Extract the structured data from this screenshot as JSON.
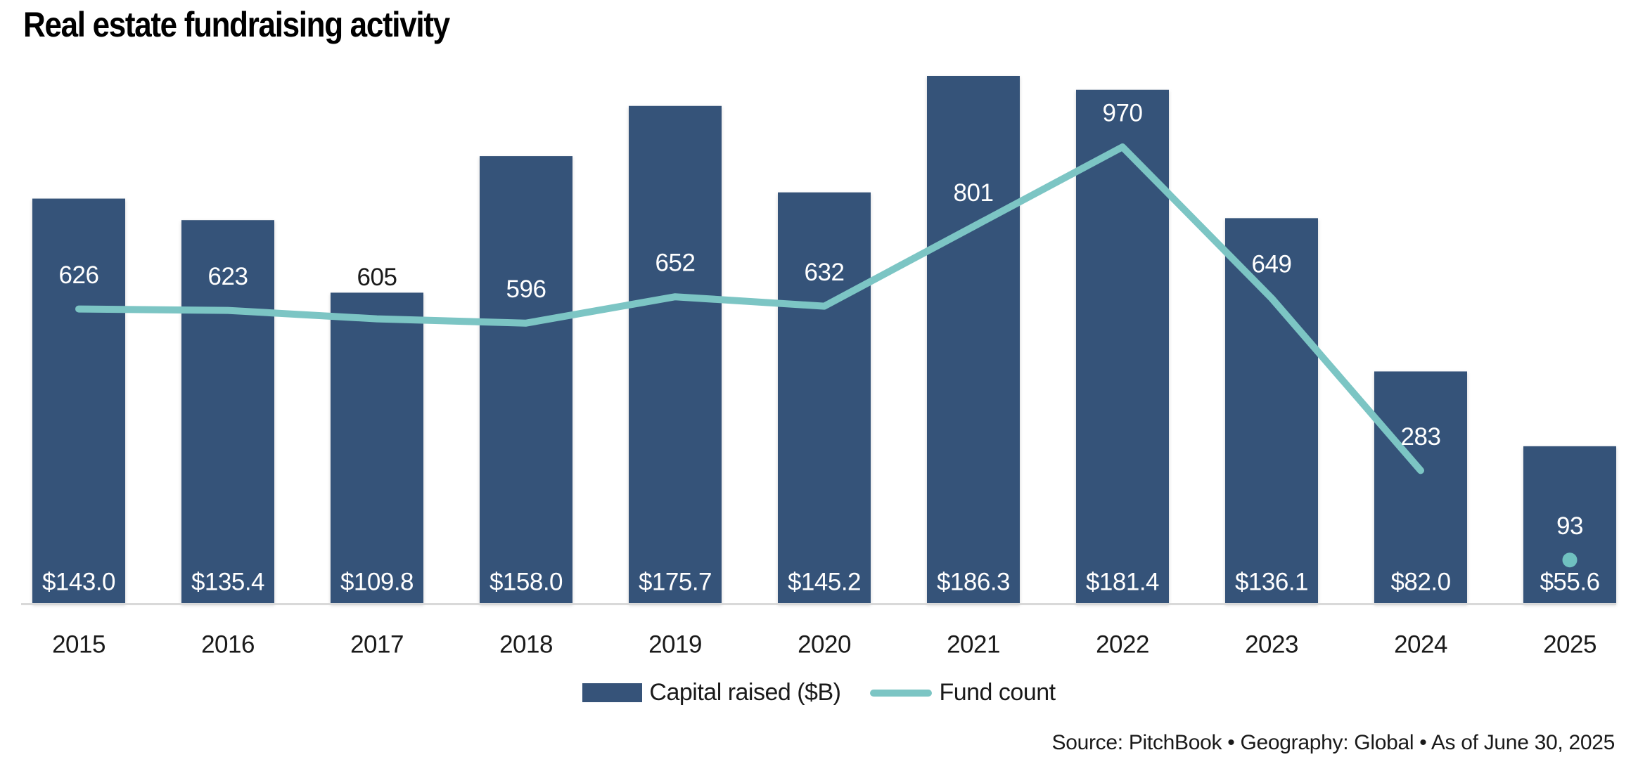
{
  "title": "Real estate fundraising activity",
  "legend": {
    "capital_raised_label": "Capital raised ($B)",
    "fund_count_label": "Fund count"
  },
  "source_line": "Source: PitchBook  •  Geography: Global  •  As of June 30, 2025",
  "colors": {
    "bar": "#365379",
    "line": "#7cc5c4",
    "dot": "#70c1c0",
    "axis_line": "#d9d9d9",
    "label_on_bar": "#ffffff",
    "label_dark": "#1a1a1a",
    "title": "#000000"
  },
  "chart_data": {
    "type": "combo bar+line",
    "title": "Real estate fundraising activity",
    "categories": [
      "2015",
      "2016",
      "2017",
      "2018",
      "2019",
      "2020",
      "2021",
      "2022",
      "2023",
      "2024",
      "2025"
    ],
    "series": [
      {
        "name": "Capital raised ($B)",
        "type": "bar",
        "values": [
          143.0,
          135.4,
          109.8,
          158.0,
          175.7,
          145.2,
          186.3,
          181.4,
          136.1,
          82.0,
          55.6
        ],
        "value_labels": [
          "$143.0",
          "$135.4",
          "$109.8",
          "$158.0",
          "$175.7",
          "$145.2",
          "$186.3",
          "$181.4",
          "$136.1",
          "$82.0",
          "$55.6"
        ]
      },
      {
        "name": "Fund count",
        "type": "line",
        "values": [
          626,
          623,
          605,
          596,
          652,
          632,
          801,
          970,
          649,
          283,
          93
        ],
        "value_labels": [
          "626",
          "623",
          "605",
          "596",
          "652",
          "632",
          "801",
          "970",
          "649",
          "283",
          "93"
        ],
        "line_end_index": 9,
        "last_point_marker_only": true
      }
    ],
    "layout_hints": {
      "axes_hidden": true,
      "gridlines": false,
      "bar_value_labels": "inside bars near base, white",
      "line_value_labels": "above line points; dark when outside bar",
      "legend_position": "bottom-center",
      "x_axis_line": "light gray baseline"
    }
  }
}
